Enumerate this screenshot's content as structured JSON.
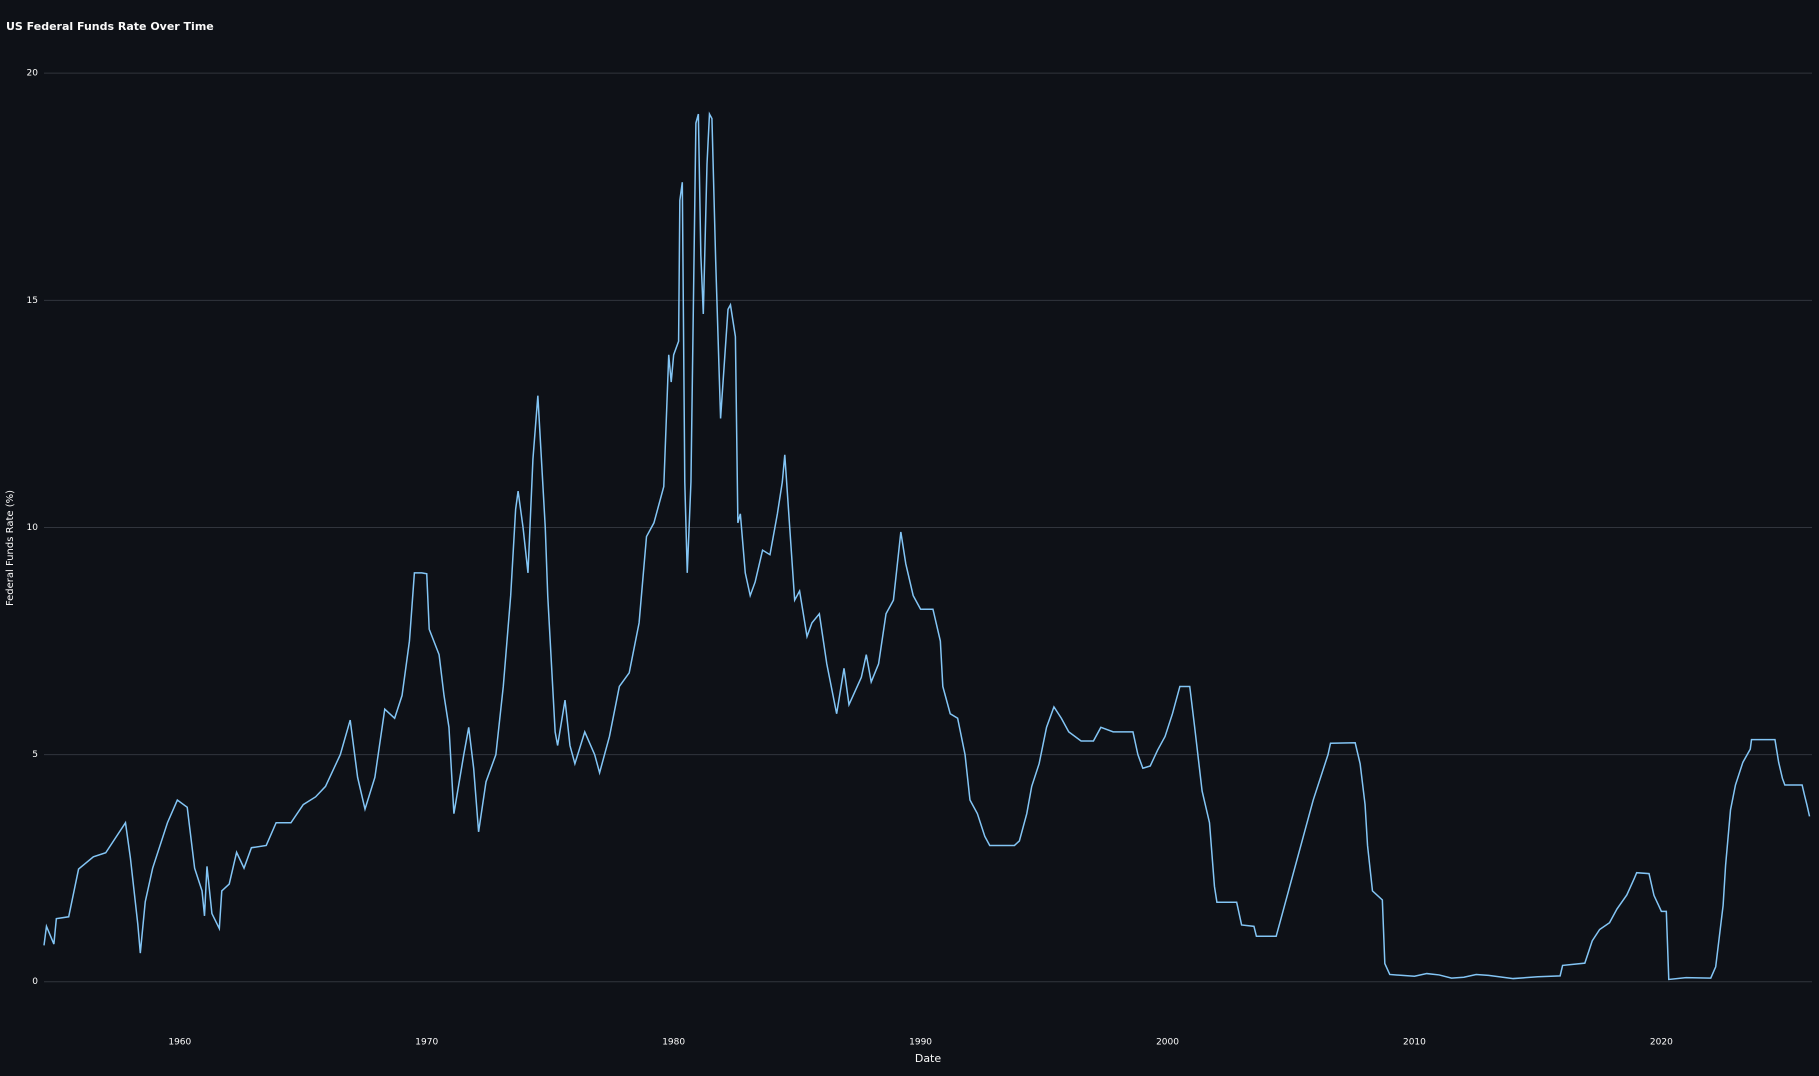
{
  "chart_data": {
    "type": "line",
    "title": "US Federal Funds Rate Over Time",
    "x_label": "Date",
    "y_label": "Federal Funds Rate (%)",
    "color": "#83c5f5",
    "grid": true,
    "xlim": [
      1954.5,
      2026.1
    ],
    "xticks": [
      1960,
      1970,
      1980,
      1990,
      2000,
      2010,
      2020
    ],
    "ylim": [
      -0.6,
      20.4
    ],
    "yticks": [
      0,
      5,
      10,
      15,
      20
    ],
    "x": [
      1954.5,
      1954.6,
      1954.9,
      1955.0,
      1955.5,
      1955.9,
      1956.5,
      1957.0,
      1957.8,
      1958.0,
      1958.3,
      1958.4,
      1958.6,
      1958.9,
      1959.5,
      1959.9,
      1960.3,
      1960.6,
      1960.9,
      1961.0,
      1961.1,
      1961.3,
      1961.6,
      1961.7,
      1962.0,
      1962.3,
      1962.6,
      1962.9,
      1963.5,
      1963.9,
      1964.5,
      1965.0,
      1965.5,
      1965.9,
      1966.5,
      1966.9,
      1967.2,
      1967.5,
      1967.9,
      1968.3,
      1968.7,
      1969.0,
      1969.3,
      1969.5,
      1969.8,
      1970.0,
      1970.1,
      1970.5,
      1970.7,
      1970.9,
      1971.1,
      1971.5,
      1971.7,
      1971.9,
      1972.1,
      1972.4,
      1972.8,
      1973.1,
      1973.4,
      1973.6,
      1973.7,
      1973.9,
      1974.1,
      1974.3,
      1974.5,
      1974.8,
      1974.9,
      1975.2,
      1975.3,
      1975.6,
      1975.8,
      1976.0,
      1976.4,
      1976.8,
      1977.0,
      1977.4,
      1977.8,
      1978.2,
      1978.6,
      1978.9,
      1979.2,
      1979.6,
      1979.8,
      1979.9,
      1980.0,
      1980.2,
      1980.25,
      1980.35,
      1980.45,
      1980.55,
      1980.7,
      1980.9,
      1981.0,
      1981.1,
      1981.2,
      1981.35,
      1981.45,
      1981.55,
      1981.7,
      1981.9,
      1982.0,
      1982.2,
      1982.3,
      1982.5,
      1982.6,
      1982.7,
      1982.9,
      1983.1,
      1983.3,
      1983.6,
      1983.9,
      1984.2,
      1984.4,
      1984.5,
      1984.7,
      1984.9,
      1985.1,
      1985.4,
      1985.6,
      1985.9,
      1986.2,
      1986.6,
      1986.9,
      1987.1,
      1987.6,
      1987.8,
      1988.0,
      1988.3,
      1988.6,
      1988.9,
      1989.2,
      1989.4,
      1989.7,
      1990.0,
      1990.5,
      1990.8,
      1990.9,
      1991.2,
      1991.5,
      1991.8,
      1992.0,
      1992.3,
      1992.6,
      1992.8,
      1993.5,
      1993.8,
      1994.0,
      1994.3,
      1994.5,
      1994.8,
      1995.1,
      1995.4,
      1995.7,
      1996.0,
      1996.5,
      1997.0,
      1997.3,
      1997.8,
      1998.3,
      1998.6,
      1998.8,
      1999.0,
      1999.3,
      1999.6,
      1999.9,
      2000.2,
      2000.5,
      2000.9,
      2001.1,
      2001.4,
      2001.7,
      2001.9,
      2002.0,
      2002.8,
      2003.0,
      2003.5,
      2003.6,
      2004.4,
      2004.6,
      2004.9,
      2005.3,
      2005.9,
      2006.5,
      2006.6,
      2007.6,
      2007.8,
      2008.0,
      2008.1,
      2008.3,
      2008.7,
      2008.8,
      2009.0,
      2010.0,
      2010.5,
      2011.0,
      2011.5,
      2012.0,
      2012.5,
      2013.0,
      2014.0,
      2015.0,
      2015.9,
      2016.0,
      2016.9,
      2017.2,
      2017.5,
      2017.9,
      2018.2,
      2018.6,
      2018.9,
      2019.0,
      2019.5,
      2019.7,
      2020.0,
      2020.2,
      2020.3,
      2021.0,
      2022.0,
      2022.2,
      2022.5,
      2022.6,
      2022.8,
      2023.0,
      2023.3,
      2023.6,
      2023.65,
      2024.6,
      2024.75,
      2024.9,
      2025.0,
      2025.7,
      2025.8,
      2025.9,
      2026.0
    ],
    "values": [
      0.8,
      1.22,
      0.83,
      1.39,
      1.43,
      2.48,
      2.75,
      2.84,
      3.5,
      2.72,
      1.26,
      0.63,
      1.76,
      2.5,
      3.5,
      4.0,
      3.84,
      2.5,
      2.0,
      1.45,
      2.54,
      1.5,
      1.17,
      2.0,
      2.15,
      2.85,
      2.5,
      2.95,
      3.0,
      3.5,
      3.5,
      3.9,
      4.07,
      4.3,
      5.0,
      5.76,
      4.5,
      3.8,
      4.5,
      6.0,
      5.8,
      6.3,
      7.5,
      9.0,
      9.0,
      8.98,
      7.76,
      7.2,
      6.3,
      5.6,
      3.7,
      5.0,
      5.6,
      4.7,
      3.3,
      4.4,
      5.0,
      6.5,
      8.5,
      10.4,
      10.8,
      10.0,
      9.0,
      11.5,
      12.9,
      10.0,
      8.5,
      5.5,
      5.2,
      6.2,
      5.2,
      4.8,
      5.5,
      5.0,
      4.6,
      5.4,
      6.5,
      6.8,
      7.9,
      9.8,
      10.1,
      10.9,
      13.8,
      13.2,
      13.8,
      14.1,
      17.2,
      17.6,
      11.0,
      9.0,
      11.0,
      18.9,
      19.1,
      16.0,
      14.7,
      18.0,
      19.1,
      19.0,
      15.9,
      12.4,
      13.2,
      14.8,
      14.9,
      14.2,
      10.1,
      10.3,
      9.0,
      8.5,
      8.8,
      9.5,
      9.4,
      10.3,
      11.0,
      11.6,
      10.0,
      8.4,
      8.6,
      7.6,
      7.9,
      8.1,
      7.0,
      5.9,
      6.9,
      6.1,
      6.7,
      7.2,
      6.6,
      7.0,
      8.1,
      8.4,
      9.9,
      9.2,
      8.5,
      8.2,
      8.2,
      7.5,
      6.5,
      5.9,
      5.8,
      5.0,
      4.0,
      3.7,
      3.2,
      3.0,
      3.0,
      3.0,
      3.1,
      3.7,
      4.3,
      4.8,
      5.6,
      6.05,
      5.8,
      5.5,
      5.3,
      5.3,
      5.6,
      5.5,
      5.5,
      5.5,
      5.0,
      4.7,
      4.75,
      5.1,
      5.4,
      5.9,
      6.5,
      6.5,
      5.6,
      4.2,
      3.5,
      2.1,
      1.75,
      1.75,
      1.25,
      1.22,
      1.0,
      1.0,
      1.4,
      2.0,
      2.8,
      4.0,
      5.0,
      5.25,
      5.26,
      4.8,
      3.9,
      3.0,
      2.0,
      1.8,
      0.4,
      0.16,
      0.12,
      0.18,
      0.15,
      0.08,
      0.1,
      0.16,
      0.14,
      0.07,
      0.11,
      0.13,
      0.36,
      0.41,
      0.9,
      1.15,
      1.3,
      1.6,
      1.91,
      2.27,
      2.4,
      2.38,
      1.9,
      1.55,
      1.55,
      0.05,
      0.09,
      0.08,
      0.33,
      1.68,
      2.56,
      3.78,
      4.33,
      4.83,
      5.12,
      5.33,
      5.33,
      4.83,
      4.48,
      4.33,
      4.33,
      4.1,
      3.88,
      3.64
    ]
  }
}
